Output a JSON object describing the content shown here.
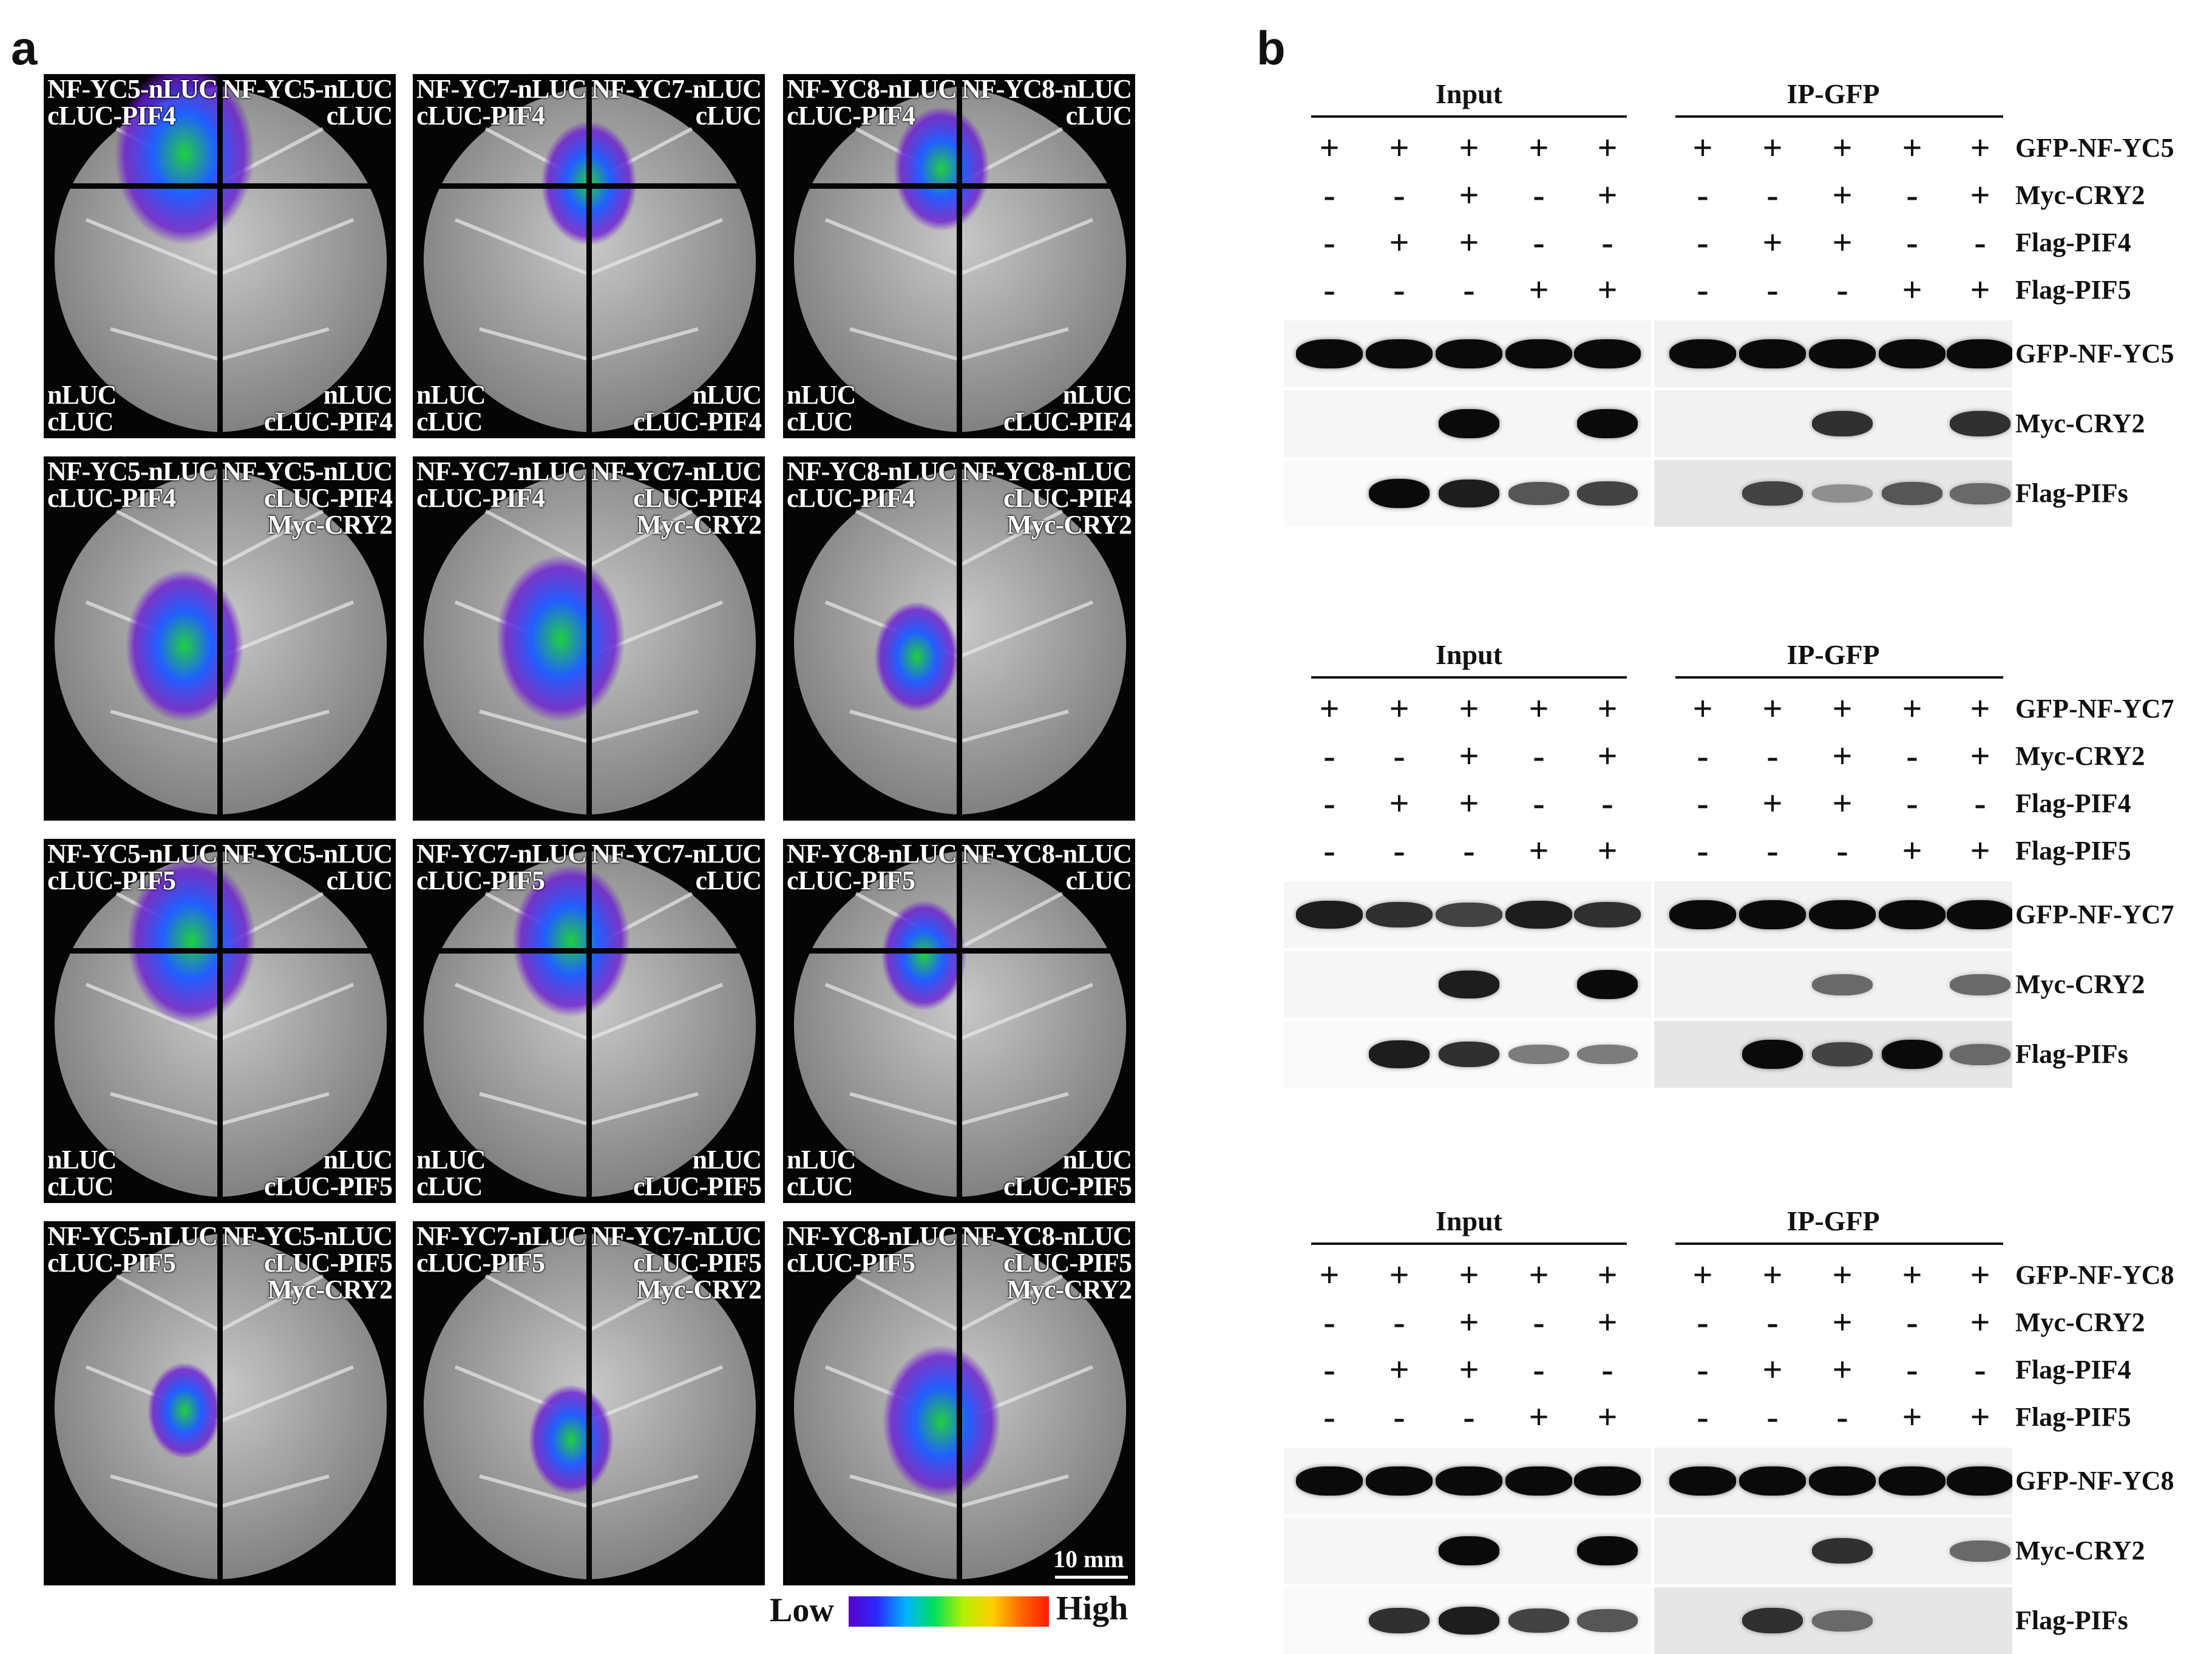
{
  "panel_a": {
    "letter": "a",
    "rows": [
      {
        "tiles": [
          {
            "tl": [
              "NF-YC5-nLUC",
              "cLUC-PIF4"
            ],
            "tr": [
              "NF-YC5-nLUC",
              "cLUC"
            ],
            "bl": [
              "nLUC",
              "cLUC"
            ],
            "br": [
              "nLUC",
              "cLUC-PIF4"
            ]
          },
          {
            "tl": [
              "NF-YC7-nLUC",
              "cLUC-PIF4"
            ],
            "tr": [
              "NF-YC7-nLUC",
              "cLUC"
            ],
            "bl": [
              "nLUC",
              "cLUC"
            ],
            "br": [
              "nLUC",
              "cLUC-PIF4"
            ]
          },
          {
            "tl": [
              "NF-YC8-nLUC",
              "cLUC-PIF4"
            ],
            "tr": [
              "NF-YC8-nLUC",
              "cLUC"
            ],
            "bl": [
              "nLUC",
              "cLUC"
            ],
            "br": [
              "nLUC",
              "cLUC-PIF4"
            ]
          }
        ]
      },
      {
        "tiles": [
          {
            "tl": [
              "NF-YC5-nLUC",
              "cLUC-PIF4"
            ],
            "tr": [
              "NF-YC5-nLUC",
              "cLUC-PIF4",
              "Myc-CRY2"
            ]
          },
          {
            "tl": [
              "NF-YC7-nLUC",
              "cLUC-PIF4"
            ],
            "tr": [
              "NF-YC7-nLUC",
              "cLUC-PIF4",
              "Myc-CRY2"
            ]
          },
          {
            "tl": [
              "NF-YC8-nLUC",
              "cLUC-PIF4"
            ],
            "tr": [
              "NF-YC8-nLUC",
              "cLUC-PIF4",
              "Myc-CRY2"
            ]
          }
        ]
      },
      {
        "tiles": [
          {
            "tl": [
              "NF-YC5-nLUC",
              "cLUC-PIF5"
            ],
            "tr": [
              "NF-YC5-nLUC",
              "cLUC"
            ],
            "bl": [
              "nLUC",
              "cLUC"
            ],
            "br": [
              "nLUC",
              "cLUC-PIF5"
            ]
          },
          {
            "tl": [
              "NF-YC7-nLUC",
              "cLUC-PIF5"
            ],
            "tr": [
              "NF-YC7-nLUC",
              "cLUC"
            ],
            "bl": [
              "nLUC",
              "cLUC"
            ],
            "br": [
              "nLUC",
              "cLUC-PIF5"
            ]
          },
          {
            "tl": [
              "NF-YC8-nLUC",
              "cLUC-PIF5"
            ],
            "tr": [
              "NF-YC8-nLUC",
              "cLUC"
            ],
            "bl": [
              "nLUC",
              "cLUC"
            ],
            "br": [
              "nLUC",
              "cLUC-PIF5"
            ]
          }
        ]
      },
      {
        "tiles": [
          {
            "tl": [
              "NF-YC5-nLUC",
              "cLUC-PIF5"
            ],
            "tr": [
              "NF-YC5-nLUC",
              "cLUC-PIF5",
              "Myc-CRY2"
            ]
          },
          {
            "tl": [
              "NF-YC7-nLUC",
              "cLUC-PIF5"
            ],
            "tr": [
              "NF-YC7-nLUC",
              "cLUC-PIF5",
              "Myc-CRY2"
            ]
          },
          {
            "tl": [
              "NF-YC8-nLUC",
              "cLUC-PIF5"
            ],
            "tr": [
              "NF-YC8-nLUC",
              "cLUC-PIF5",
              "Myc-CRY2"
            ]
          }
        ]
      }
    ],
    "scale_bar": "10 mm",
    "colorbar": {
      "low": "Low",
      "high": "High"
    }
  },
  "panel_b": {
    "letter": "b",
    "blots": [
      {
        "input_label": "Input",
        "ip_label": "IP-GFP",
        "treatments": [
          {
            "name": "GFP-NF-YC5",
            "signs": [
              "+",
              "+",
              "+",
              "+",
              "+"
            ]
          },
          {
            "name": "Myc-CRY2",
            "signs": [
              "-",
              "-",
              "+",
              "-",
              "+"
            ]
          },
          {
            "name": "Flag-PIF4",
            "signs": [
              "-",
              "+",
              "+",
              "-",
              "-"
            ]
          },
          {
            "name": "Flag-PIF5",
            "signs": [
              "-",
              "-",
              "-",
              "+",
              "+"
            ]
          }
        ],
        "bands": [
          {
            "name": "GFP-NF-YC5",
            "input": [
              1,
              1,
              1,
              1,
              1
            ],
            "ip": [
              1,
              1,
              1,
              1,
              1
            ]
          },
          {
            "name": "Myc-CRY2",
            "input": [
              0,
              0,
              1,
              0,
              1
            ],
            "ip": [
              0,
              0,
              0.8,
              0,
              0.8
            ]
          },
          {
            "name": "Flag-PIFs",
            "input": [
              0,
              1,
              0.9,
              0.6,
              0.7
            ],
            "ip": [
              0,
              0.7,
              0.3,
              0.6,
              0.5
            ]
          }
        ]
      },
      {
        "input_label": "Input",
        "ip_label": "IP-GFP",
        "treatments": [
          {
            "name": "GFP-NF-YC7",
            "signs": [
              "+",
              "+",
              "+",
              "+",
              "+"
            ]
          },
          {
            "name": "Myc-CRY2",
            "signs": [
              "-",
              "-",
              "+",
              "-",
              "+"
            ]
          },
          {
            "name": "Flag-PIF4",
            "signs": [
              "-",
              "+",
              "+",
              "-",
              "-"
            ]
          },
          {
            "name": "Flag-PIF5",
            "signs": [
              "-",
              "-",
              "-",
              "+",
              "+"
            ]
          }
        ],
        "bands": [
          {
            "name": "GFP-NF-YC7",
            "input": [
              0.9,
              0.8,
              0.7,
              0.9,
              0.8
            ],
            "ip": [
              1,
              1,
              1,
              1,
              1
            ]
          },
          {
            "name": "Myc-CRY2",
            "input": [
              0,
              0,
              0.9,
              0,
              1
            ],
            "ip": [
              0,
              0,
              0.5,
              0,
              0.5
            ]
          },
          {
            "name": "Flag-PIFs",
            "input": [
              0,
              0.9,
              0.8,
              0.4,
              0.4
            ],
            "ip": [
              0,
              1,
              0.7,
              1,
              0.5
            ]
          }
        ]
      },
      {
        "input_label": "Input",
        "ip_label": "IP-GFP",
        "treatments": [
          {
            "name": "GFP-NF-YC8",
            "signs": [
              "+",
              "+",
              "+",
              "+",
              "+"
            ]
          },
          {
            "name": "Myc-CRY2",
            "signs": [
              "-",
              "-",
              "+",
              "-",
              "+"
            ]
          },
          {
            "name": "Flag-PIF4",
            "signs": [
              "-",
              "+",
              "+",
              "-",
              "-"
            ]
          },
          {
            "name": "Flag-PIF5",
            "signs": [
              "-",
              "-",
              "-",
              "+",
              "+"
            ]
          }
        ],
        "bands": [
          {
            "name": "GFP-NF-YC8",
            "input": [
              1,
              1,
              1,
              1,
              1
            ],
            "ip": [
              1,
              1,
              1,
              1,
              1
            ]
          },
          {
            "name": "Myc-CRY2",
            "input": [
              0,
              0,
              1,
              0,
              1
            ],
            "ip": [
              0,
              0,
              0.8,
              0,
              0.5
            ]
          },
          {
            "name": "Flag-PIFs",
            "input": [
              0,
              0.8,
              0.9,
              0.7,
              0.6
            ],
            "ip": [
              0,
              0.8,
              0.5,
              0,
              0
            ]
          }
        ]
      }
    ]
  }
}
